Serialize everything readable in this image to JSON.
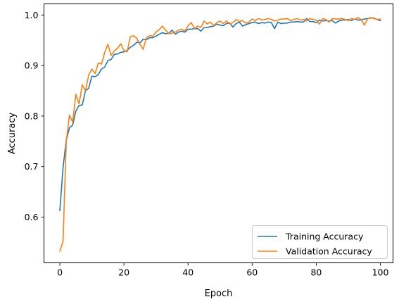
{
  "chart_data": {
    "type": "line",
    "title": "",
    "xlabel": "Epoch",
    "ylabel": "Accuracy",
    "xlim": [
      -4.95,
      103.95
    ],
    "ylim": [
      0.5095,
      1.022
    ],
    "xticks": [
      0,
      20,
      40,
      60,
      80,
      100
    ],
    "yticks": [
      0.6,
      0.7,
      0.8,
      0.9,
      1.0
    ],
    "xtick_labels": [
      "0",
      "20",
      "40",
      "60",
      "80",
      "100"
    ],
    "ytick_labels": [
      "0.6",
      "0.7",
      "0.8",
      "0.9",
      "1.0"
    ],
    "grid": false,
    "legend_position": "lower-right",
    "series": [
      {
        "name": "Training Accuracy",
        "color": "#1f77b4",
        "values": [
          0.613,
          0.698,
          0.752,
          0.777,
          0.782,
          0.81,
          0.821,
          0.822,
          0.85,
          0.855,
          0.879,
          0.878,
          0.882,
          0.893,
          0.897,
          0.91,
          0.912,
          0.922,
          0.923,
          0.926,
          0.927,
          0.93,
          0.936,
          0.94,
          0.946,
          0.945,
          0.952,
          0.951,
          0.955,
          0.955,
          0.958,
          0.962,
          0.965,
          0.963,
          0.964,
          0.97,
          0.962,
          0.966,
          0.968,
          0.966,
          0.972,
          0.972,
          0.973,
          0.973,
          0.968,
          0.975,
          0.975,
          0.977,
          0.978,
          0.982,
          0.98,
          0.979,
          0.983,
          0.984,
          0.976,
          0.983,
          0.986,
          0.978,
          0.981,
          0.983,
          0.985,
          0.986,
          0.983,
          0.985,
          0.984,
          0.986,
          0.985,
          0.973,
          0.986,
          0.983,
          0.984,
          0.984,
          0.986,
          0.986,
          0.987,
          0.986,
          0.986,
          0.993,
          0.987,
          0.987,
          0.985,
          0.99,
          0.988,
          0.989,
          0.988,
          0.989,
          0.984,
          0.988,
          0.99,
          0.99,
          0.991,
          0.989,
          0.992,
          0.99,
          0.99,
          0.992,
          0.993,
          0.994,
          0.994,
          0.991,
          0.989
        ]
      },
      {
        "name": "Validation Accuracy",
        "color": "#ff7f0e",
        "values": [
          0.533,
          0.552,
          0.749,
          0.802,
          0.788,
          0.843,
          0.824,
          0.862,
          0.85,
          0.881,
          0.893,
          0.884,
          0.905,
          0.903,
          0.926,
          0.942,
          0.92,
          0.929,
          0.934,
          0.943,
          0.93,
          0.927,
          0.957,
          0.959,
          0.954,
          0.942,
          0.932,
          0.955,
          0.959,
          0.958,
          0.966,
          0.971,
          0.978,
          0.97,
          0.963,
          0.964,
          0.966,
          0.97,
          0.972,
          0.968,
          0.979,
          0.985,
          0.973,
          0.978,
          0.975,
          0.988,
          0.982,
          0.986,
          0.979,
          0.985,
          0.988,
          0.983,
          0.988,
          0.982,
          0.985,
          0.991,
          0.987,
          0.989,
          0.984,
          0.986,
          0.992,
          0.989,
          0.993,
          0.99,
          0.991,
          0.993,
          0.991,
          0.988,
          0.99,
          0.992,
          0.992,
          0.993,
          0.989,
          0.991,
          0.993,
          0.99,
          0.991,
          0.988,
          0.993,
          0.991,
          0.99,
          0.982,
          0.993,
          0.991,
          0.986,
          0.993,
          0.992,
          0.992,
          0.993,
          0.991,
          0.989,
          0.993,
          0.991,
          0.995,
          0.991,
          0.98,
          0.992,
          0.995,
          0.993,
          0.991,
          0.992
        ]
      }
    ]
  }
}
